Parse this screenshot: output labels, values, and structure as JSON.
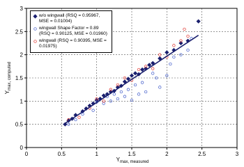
{
  "chart_data": {
    "type": "scatter",
    "xlabel": {
      "text": "Y",
      "sub": "max, measured"
    },
    "ylabel": {
      "text": "Y",
      "sub": "max, computed"
    },
    "xlim": [
      0,
      3
    ],
    "ylim": [
      0,
      3
    ],
    "xticks": [
      0,
      0.5,
      1,
      1.5,
      2,
      2.5,
      3
    ],
    "yticks": [
      0,
      0.5,
      1,
      1.5,
      2,
      2.5,
      3
    ],
    "grid": true,
    "legend": "upper-left",
    "series": [
      {
        "name": "w/o wingwall (RSQ = 0.95967, MSE = 0.01004)",
        "color": "#1a1f6e",
        "marker": "diamond",
        "filled": true,
        "x": [
          0.55,
          0.6,
          0.65,
          0.7,
          0.8,
          0.85,
          0.9,
          0.95,
          1.0,
          1.05,
          1.1,
          1.15,
          1.2,
          1.25,
          1.3,
          1.35,
          1.4,
          1.45,
          1.5,
          1.55,
          1.6,
          1.65,
          1.7,
          1.75,
          1.8,
          1.9,
          2.0,
          2.1,
          2.2,
          2.3,
          2.45
        ],
        "values": [
          0.5,
          0.58,
          0.62,
          0.7,
          0.78,
          0.84,
          0.9,
          0.95,
          1.02,
          1.05,
          1.12,
          1.15,
          1.2,
          1.22,
          1.3,
          1.33,
          1.42,
          1.48,
          1.55,
          1.6,
          1.58,
          1.68,
          1.7,
          1.78,
          1.82,
          1.92,
          2.05,
          2.1,
          2.25,
          2.3,
          2.72
        ]
      },
      {
        "name": "wingwall Shape Factor = 0.89 (RSQ = 0.90125, MSE = 0.01960)",
        "color": "#3a56c8",
        "marker": "circle",
        "filled": false,
        "x": [
          0.6,
          0.7,
          0.8,
          0.9,
          0.95,
          1.0,
          1.1,
          1.15,
          1.2,
          1.25,
          1.3,
          1.35,
          1.4,
          1.45,
          1.5,
          1.55,
          1.6,
          1.65,
          1.7,
          1.8,
          1.85,
          1.9,
          2.0,
          2.05,
          2.1,
          2.2,
          2.3,
          2.35
        ],
        "values": [
          0.5,
          0.6,
          0.72,
          0.85,
          0.8,
          0.98,
          0.95,
          1.1,
          1.0,
          1.15,
          1.05,
          1.2,
          1.1,
          1.25,
          1.02,
          1.35,
          1.15,
          1.4,
          1.2,
          1.6,
          1.5,
          1.3,
          1.55,
          1.8,
          1.95,
          2.0,
          2.1,
          2.35
        ]
      },
      {
        "name": "wingwall (RSQ = 0.90395, MSE = 0.01975)",
        "color": "#e0302a",
        "marker": "circle",
        "filled": false,
        "x": [
          0.6,
          0.75,
          0.9,
          1.0,
          1.1,
          1.2,
          1.3,
          1.4,
          1.5,
          1.6,
          1.7,
          1.8,
          1.9,
          2.0,
          2.1,
          2.2,
          2.25,
          2.3
        ],
        "values": [
          0.6,
          0.65,
          0.85,
          1.05,
          1.0,
          1.25,
          1.35,
          1.5,
          1.45,
          1.68,
          1.75,
          1.7,
          2.0,
          1.95,
          2.2,
          2.3,
          2.55,
          2.4
        ]
      }
    ],
    "fit_line": {
      "color": "#1a1f6e",
      "x": [
        0.55,
        2.45
      ],
      "values": [
        0.52,
        2.42
      ]
    }
  }
}
